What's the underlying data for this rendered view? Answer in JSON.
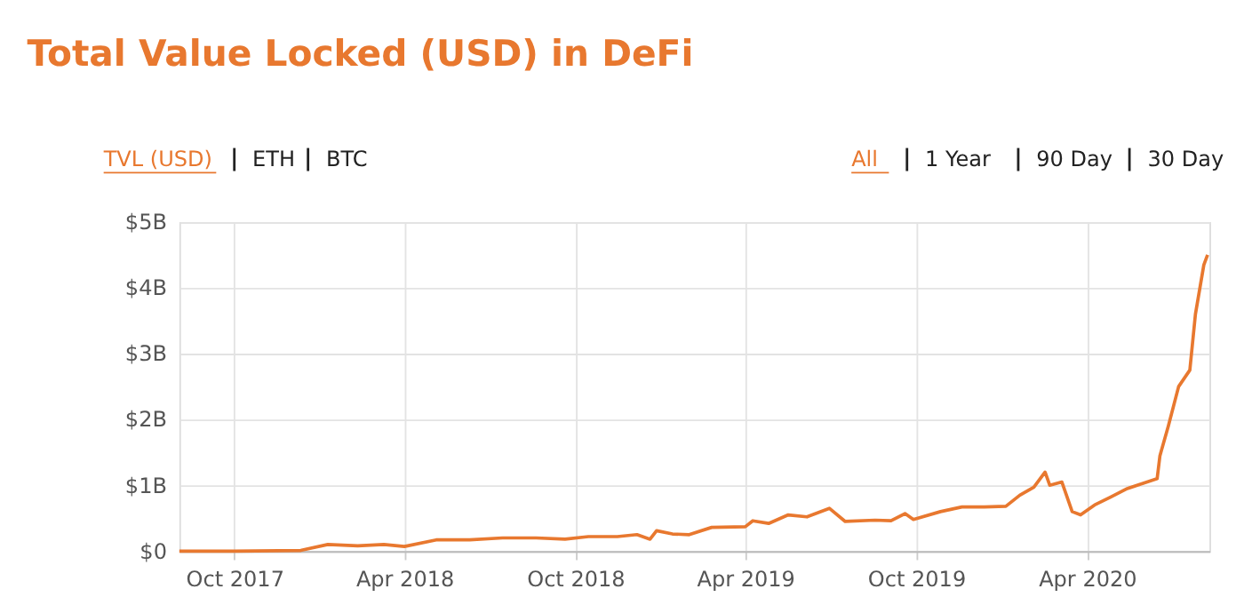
{
  "chart_data": {
    "type": "line",
    "title": "Total Value Locked (USD) in DeFi",
    "annotations": [
      "TVL (USD)",
      "ETH",
      "BTC",
      "All",
      "1 Year",
      "90 Day",
      "30 Day"
    ],
    "x": [
      "2017-08-03",
      "2017-10-01",
      "2017-12-11",
      "2018-01-09",
      "2018-02-10",
      "2018-03-10",
      "2018-04-01",
      "2018-05-05",
      "2018-06-10",
      "2018-07-15",
      "2018-08-20",
      "2018-09-20",
      "2018-10-15",
      "2018-11-15",
      "2018-12-06",
      "2018-12-20",
      "2018-12-27",
      "2019-01-13",
      "2019-01-31",
      "2019-02-24",
      "2019-04-01",
      "2019-04-09",
      "2019-04-26",
      "2019-05-17",
      "2019-06-06",
      "2019-06-30",
      "2019-07-17",
      "2019-08-18",
      "2019-09-04",
      "2019-09-19",
      "2019-09-28",
      "2019-10-27",
      "2019-11-19",
      "2019-12-13",
      "2020-01-05",
      "2020-01-20",
      "2020-02-04",
      "2020-02-16",
      "2020-02-21",
      "2020-03-05",
      "2020-03-16",
      "2020-03-25",
      "2020-04-09",
      "2020-04-26",
      "2020-05-14",
      "2020-05-31",
      "2020-06-15",
      "2020-06-18",
      "2020-06-27",
      "2020-07-08",
      "2020-07-20",
      "2020-07-26",
      "2020-08-04",
      "2020-08-08"
    ],
    "series": [
      {
        "color": "#e8782f",
        "values": [
          0,
          0,
          0.01,
          0.1,
          0.08,
          0.1,
          0.07,
          0.17,
          0.17,
          0.2,
          0.2,
          0.18,
          0.22,
          0.22,
          0.25,
          0.18,
          0.31,
          0.26,
          0.25,
          0.36,
          0.37,
          0.46,
          0.42,
          0.55,
          0.52,
          0.65,
          0.45,
          0.47,
          0.46,
          0.57,
          0.48,
          0.6,
          0.67,
          0.67,
          0.68,
          0.85,
          0.97,
          1.2,
          1.0,
          1.05,
          0.6,
          0.55,
          0.7,
          0.82,
          0.95,
          1.03,
          1.1,
          1.45,
          1.9,
          2.5,
          2.75,
          3.6,
          4.35,
          4.5
        ]
      }
    ],
    "xlim": [
      "2017-08-03",
      "2020-08-10"
    ],
    "xticks": [
      {
        "value": "2017-10-01",
        "label": "Oct 2017"
      },
      {
        "value": "2018-04-01",
        "label": "Apr 2018"
      },
      {
        "value": "2018-10-01",
        "label": "Oct 2018"
      },
      {
        "value": "2019-04-01",
        "label": "Apr 2019"
      },
      {
        "value": "2019-10-01",
        "label": "Oct 2019"
      },
      {
        "value": "2020-04-01",
        "label": "Apr 2020"
      }
    ],
    "ylim": [
      0,
      5
    ],
    "yticks": [
      {
        "value": 0,
        "label": "$0"
      },
      {
        "value": 1,
        "label": "$1B"
      },
      {
        "value": 2,
        "label": "$2B"
      },
      {
        "value": 3,
        "label": "$3B"
      },
      {
        "value": 4,
        "label": "$4B"
      },
      {
        "value": 5,
        "label": "$5B"
      }
    ],
    "grid": true,
    "line_style": "solid",
    "marker": "none"
  }
}
